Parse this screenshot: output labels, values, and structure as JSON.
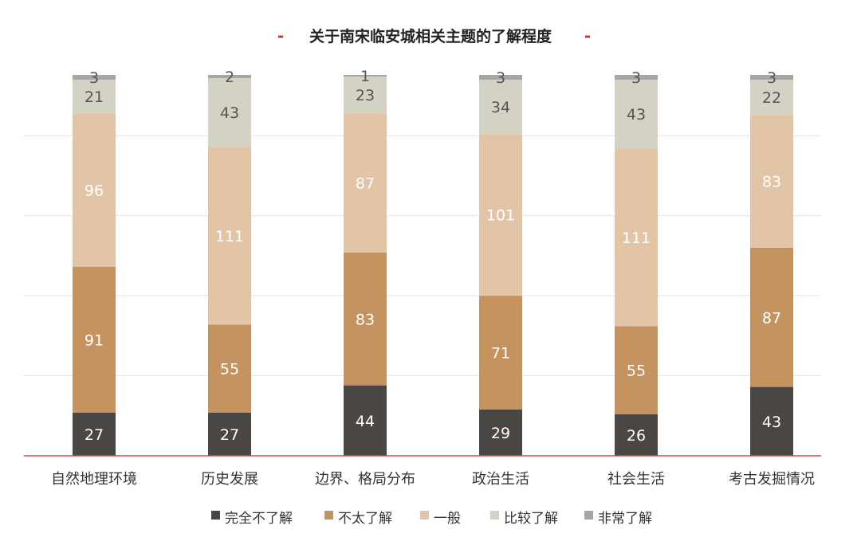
{
  "chart_data": {
    "type": "bar",
    "stacked": true,
    "title": "关于南宋临安城相关主题的了解程度",
    "title_decoration": "-",
    "categories": [
      "自然地理环境",
      "历史发展",
      "边界、格局分布",
      "政治生活",
      "社会生活",
      "考古发掘情况"
    ],
    "series": [
      {
        "name": "完全不了解",
        "color": "#4a4644",
        "values": [
          27,
          27,
          44,
          29,
          26,
          43
        ]
      },
      {
        "name": "不太了解",
        "color": "#c4935f",
        "values": [
          91,
          55,
          83,
          71,
          55,
          87
        ]
      },
      {
        "name": "一般",
        "color": "#e2c5a7",
        "values": [
          96,
          111,
          87,
          101,
          111,
          83
        ]
      },
      {
        "name": "比较了解",
        "color": "#d4d2c4",
        "values": [
          21,
          43,
          23,
          34,
          43,
          22
        ]
      },
      {
        "name": "非常了解",
        "color": "#a6a6a6",
        "values": [
          3,
          2,
          1,
          3,
          3,
          3
        ]
      }
    ],
    "ylim": [
      0,
      238
    ],
    "grid": true,
    "legend": "bottom",
    "axis_color": "#c0504d",
    "label_dark_color": "#ffffff",
    "label_light_color": "#555555"
  }
}
